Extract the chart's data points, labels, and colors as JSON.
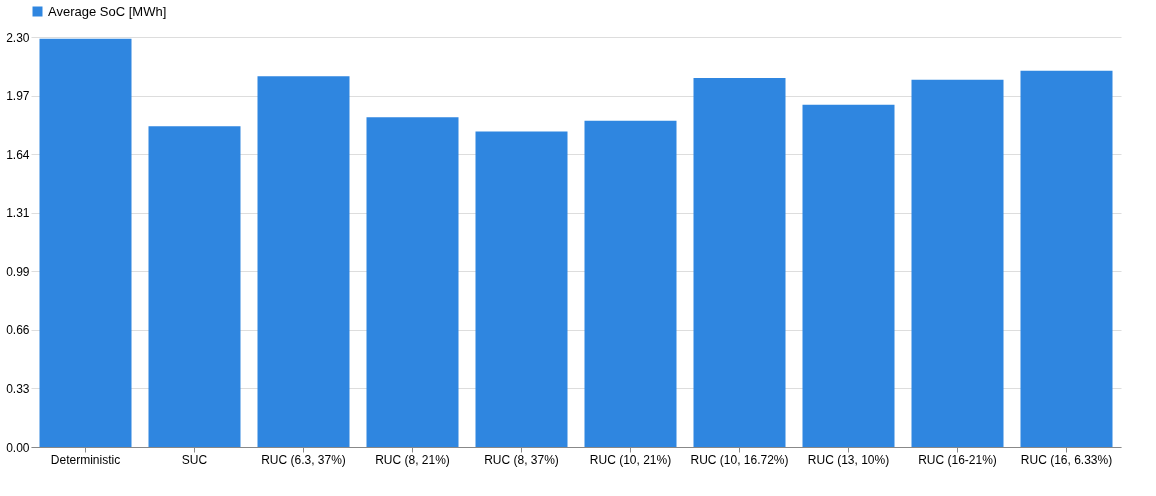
{
  "chart_data": {
    "type": "bar",
    "categories": [
      "Deterministic",
      "SUC",
      "RUC (6.3, 37%)",
      "RUC (8, 21%)",
      "RUC (8, 37%)",
      "RUC (10, 21%)",
      "RUC (10, 16.72%)",
      "RUC (13, 10%)",
      "RUC (16-21%)",
      "RUC (16, 6.33%)"
    ],
    "series": [
      {
        "name": "Average SoC [MWh]",
        "color": "#2f86e0",
        "values": [
          2.29,
          1.8,
          2.08,
          1.85,
          1.77,
          1.83,
          2.07,
          1.92,
          2.06,
          2.11
        ]
      }
    ],
    "ylim": [
      0,
      2.3
    ],
    "yticks": [
      {
        "value": 0,
        "label": "0.00"
      },
      {
        "value": 0.3286,
        "label": "0.33"
      },
      {
        "value": 0.6571,
        "label": "0.66"
      },
      {
        "value": 0.9857,
        "label": "0.99"
      },
      {
        "value": 1.3143,
        "label": "1.31"
      },
      {
        "value": 1.6429,
        "label": "1.64"
      },
      {
        "value": 1.9714,
        "label": "1.97"
      },
      {
        "value": 2.3,
        "label": "2.30"
      }
    ],
    "grid": "y",
    "legend": "top"
  }
}
